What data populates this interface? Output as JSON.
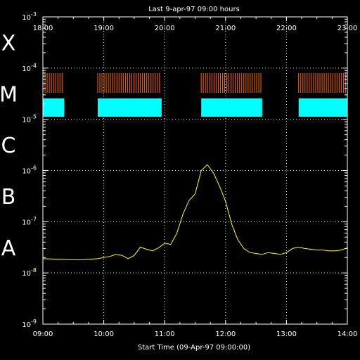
{
  "chart_data": {
    "type": "line",
    "title": "Last 9-apr-97 09:00 hours",
    "xlabel": "Start Time (09-Apr-97 09:00:00)",
    "ylabel": "",
    "y_scale": "log",
    "ylim": [
      1e-09,
      0.001
    ],
    "y_tick_bases": [
      "10",
      "10",
      "10",
      "10",
      "10",
      "10",
      "10"
    ],
    "y_tick_exps": [
      "-9",
      "-8",
      "-7",
      "-6",
      "-5",
      "-4",
      "-3"
    ],
    "y_tick_values": [
      1e-09,
      1e-08,
      1e-07,
      1e-06,
      1e-05,
      0.0001,
      0.001
    ],
    "x_ticks_bottom": [
      "09:00",
      "10:00",
      "11:00",
      "12:00",
      "13:00",
      "14:00"
    ],
    "x_ticks_top": [
      "18:00",
      "19:00",
      "20:00",
      "21:00",
      "22:00",
      "23:00"
    ],
    "class_labels": [
      "A",
      "B",
      "C",
      "M",
      "X"
    ],
    "class_lower_bounds": [
      1e-08,
      1e-07,
      1e-06,
      1e-05,
      0.0001
    ],
    "grid": true,
    "line_color": "#ffff00",
    "series": [
      {
        "x": [
          9.0,
          9.3,
          9.6,
          9.9,
          10.1,
          10.2,
          10.3,
          10.4,
          10.5,
          10.6,
          10.7,
          10.8,
          10.9,
          11.0,
          11.1,
          11.2,
          11.3,
          11.4,
          11.5,
          11.6,
          11.7,
          11.8,
          11.9,
          12.0,
          12.1,
          12.2,
          12.3,
          12.4,
          12.5,
          12.6,
          12.7,
          12.8,
          12.9,
          13.0,
          13.1,
          13.2,
          13.3,
          13.4,
          13.5,
          13.6,
          13.7,
          13.8,
          13.9,
          14.0
        ],
        "values": [
          1.9e-08,
          1.85e-08,
          1.8e-08,
          1.9e-08,
          2.1e-08,
          2.3e-08,
          2.2e-08,
          1.9e-08,
          2.2e-08,
          3.2e-08,
          2.9e-08,
          2.7e-08,
          3.1e-08,
          3.8e-08,
          3.6e-08,
          6e-08,
          1.4e-07,
          2.6e-07,
          3.5e-07,
          1e-06,
          1.3e-06,
          9e-07,
          5e-07,
          2.5e-07,
          9e-08,
          4.5e-08,
          3e-08,
          2.5e-08,
          2.4e-08,
          2.3e-08,
          2.5e-08,
          2.4e-08,
          2.3e-08,
          2.5e-08,
          3e-08,
          3.2e-08,
          3e-08,
          2.9e-08,
          2.8e-08,
          2.8e-08,
          2.7e-08,
          2.7e-08,
          2.8e-08,
          3.1e-08
        ]
      }
    ],
    "coverage_color_orange": "#ff6600",
    "coverage_color_cyan": "#00ffff",
    "coverage_orange_segments": [
      [
        9.0,
        9.35
      ],
      [
        9.9,
        10.95
      ],
      [
        11.6,
        12.6
      ],
      [
        13.2,
        14.0
      ]
    ],
    "coverage_cyan_segments": [
      [
        9.0,
        9.35
      ],
      [
        9.9,
        10.95
      ],
      [
        11.6,
        12.6
      ],
      [
        13.2,
        14.0
      ]
    ]
  }
}
